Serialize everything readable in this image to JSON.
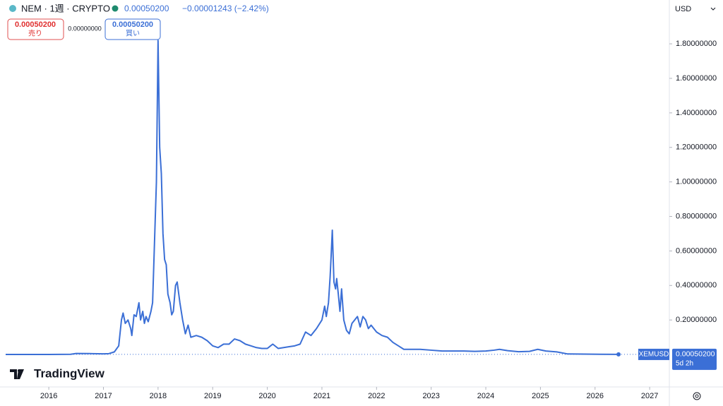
{
  "chart_data": {
    "type": "line",
    "symbol": "NEM · 1週 · CRYPTO",
    "price": "0.00050200",
    "change": "−0.00001243 (−2.42%)",
    "sell_price": "0.00050200",
    "sell_label": "売り",
    "spread": "0.00000000",
    "buy_price": "0.00050200",
    "buy_label": "買い",
    "currency": "USD",
    "ticker": "XEMUSD",
    "last_price": "0.00050200",
    "countdown": "5d 2h",
    "brand": "TradingView",
    "x": [
      2015.21,
      2016.0,
      2016.4,
      2016.5,
      2016.8,
      2017.0,
      2017.1,
      2017.2,
      2017.28,
      2017.33,
      2017.36,
      2017.4,
      2017.45,
      2017.5,
      2017.52,
      2017.56,
      2017.6,
      2017.65,
      2017.68,
      2017.72,
      2017.75,
      2017.78,
      2017.82,
      2017.87,
      2017.9,
      2017.93,
      2017.97,
      2018.0,
      2018.03,
      2018.06,
      2018.09,
      2018.12,
      2018.15,
      2018.18,
      2018.22,
      2018.25,
      2018.28,
      2018.32,
      2018.35,
      2018.4,
      2018.45,
      2018.5,
      2018.55,
      2018.6,
      2018.7,
      2018.8,
      2018.9,
      2019.0,
      2019.1,
      2019.2,
      2019.3,
      2019.4,
      2019.5,
      2019.6,
      2019.7,
      2019.8,
      2019.9,
      2020.0,
      2020.1,
      2020.2,
      2020.3,
      2020.4,
      2020.5,
      2020.6,
      2020.7,
      2020.8,
      2020.9,
      2021.0,
      2021.05,
      2021.08,
      2021.12,
      2021.15,
      2021.17,
      2021.19,
      2021.22,
      2021.25,
      2021.27,
      2021.3,
      2021.33,
      2021.36,
      2021.4,
      2021.45,
      2021.5,
      2021.55,
      2021.6,
      2021.65,
      2021.7,
      2021.75,
      2021.8,
      2021.85,
      2021.9,
      2022.0,
      2022.1,
      2022.2,
      2022.3,
      2022.4,
      2022.5,
      2022.6,
      2022.8,
      2023.0,
      2023.2,
      2023.4,
      2023.6,
      2023.8,
      2024.0,
      2024.15,
      2024.25,
      2024.4,
      2024.6,
      2024.8,
      2024.95,
      2025.1,
      2025.3,
      2025.5,
      2025.8,
      2026.1,
      2026.43
    ],
    "series": [
      {
        "name": "XEMUSD",
        "color": "#3b6fd6",
        "values": [
          0.0003,
          0.0002,
          0.0012,
          0.006,
          0.005,
          0.004,
          0.005,
          0.015,
          0.05,
          0.2,
          0.24,
          0.18,
          0.2,
          0.15,
          0.11,
          0.23,
          0.22,
          0.3,
          0.2,
          0.25,
          0.18,
          0.22,
          0.19,
          0.25,
          0.3,
          0.6,
          1.0,
          1.82,
          1.2,
          1.05,
          0.7,
          0.55,
          0.52,
          0.35,
          0.3,
          0.23,
          0.25,
          0.4,
          0.42,
          0.3,
          0.2,
          0.12,
          0.17,
          0.1,
          0.11,
          0.1,
          0.08,
          0.05,
          0.04,
          0.06,
          0.06,
          0.09,
          0.08,
          0.06,
          0.05,
          0.04,
          0.035,
          0.035,
          0.06,
          0.035,
          0.04,
          0.045,
          0.05,
          0.06,
          0.13,
          0.11,
          0.15,
          0.2,
          0.28,
          0.22,
          0.3,
          0.45,
          0.58,
          0.72,
          0.42,
          0.38,
          0.44,
          0.35,
          0.25,
          0.38,
          0.2,
          0.14,
          0.12,
          0.18,
          0.2,
          0.22,
          0.16,
          0.22,
          0.2,
          0.15,
          0.17,
          0.13,
          0.11,
          0.1,
          0.07,
          0.05,
          0.03,
          0.03,
          0.03,
          0.025,
          0.02,
          0.02,
          0.02,
          0.018,
          0.02,
          0.025,
          0.03,
          0.022,
          0.016,
          0.018,
          0.03,
          0.02,
          0.015,
          0.003,
          0.002,
          0.001,
          0.000502
        ]
      }
    ],
    "xlim": [
      2015.21,
      2027.36
    ],
    "xticks": [
      2016,
      2017,
      2018,
      2019,
      2020,
      2021,
      2022,
      2023,
      2024,
      2025,
      2026,
      2027
    ],
    "ylim": [
      -0.188,
      2.054
    ],
    "yticks": [
      {
        "value": 0.2,
        "label": "0.20000000"
      },
      {
        "value": 0.4,
        "label": "0.40000000"
      },
      {
        "value": 0.6,
        "label": "0.60000000"
      },
      {
        "value": 0.8,
        "label": "0.80000000"
      },
      {
        "value": 1.0,
        "label": "1.00000000"
      },
      {
        "value": 1.2,
        "label": "1.20000000"
      },
      {
        "value": 1.4,
        "label": "1.40000000"
      },
      {
        "value": 1.6,
        "label": "1.60000000"
      },
      {
        "value": 1.8,
        "label": "1.80000000"
      }
    ],
    "grid": false
  }
}
